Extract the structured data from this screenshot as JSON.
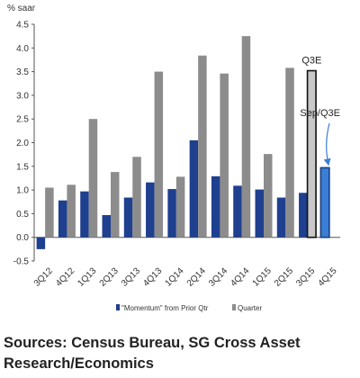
{
  "chart_data": {
    "type": "bar",
    "ylabel": "% saar",
    "categories": [
      "3Q12",
      "4Q12",
      "1Q13",
      "2Q13",
      "3Q13",
      "4Q13",
      "1Q14",
      "2Q14",
      "3Q14",
      "4Q14",
      "1Q15",
      "2Q15",
      "3Q15",
      "4Q15"
    ],
    "series": [
      {
        "name": "\"Momentum\" from Prior Qtr",
        "color": "#1f3f8f",
        "values": [
          -0.25,
          0.78,
          0.97,
          0.47,
          0.84,
          1.16,
          1.02,
          2.05,
          1.29,
          1.09,
          1.01,
          0.84,
          0.94,
          null
        ]
      },
      {
        "name": "Quarter",
        "color": "#8c8c8c",
        "values": [
          1.05,
          1.11,
          2.5,
          1.38,
          1.7,
          3.5,
          1.28,
          3.84,
          3.46,
          4.25,
          1.76,
          3.58,
          null,
          null
        ]
      }
    ],
    "highlights": [
      {
        "category": "3Q15",
        "value": 3.52,
        "label": "Q3E",
        "color": "#c8c8c8"
      },
      {
        "category": "4Q15",
        "value": 1.47,
        "label": "Sep/Q3E",
        "color": "#3a7fd5"
      }
    ],
    "ylim": [
      -0.5,
      4.5
    ],
    "yticks": [
      "-0.5",
      "0.0",
      "0.5",
      "1.0",
      "1.5",
      "2.0",
      "2.5",
      "3.0",
      "3.5",
      "4.0",
      "4.5"
    ],
    "grid": false,
    "legend_position": "bottom"
  },
  "footer": {
    "sources": "Sources: Census Bureau, SG Cross Asset Research/Economics"
  }
}
